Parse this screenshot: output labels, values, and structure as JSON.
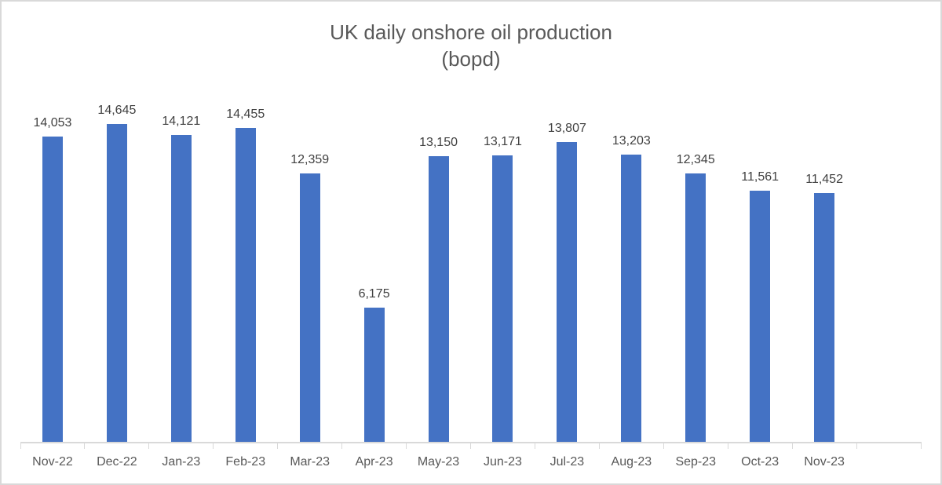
{
  "chart": {
    "title_line1": "UK daily onshore oil production",
    "title_line2": "(bopd)"
  },
  "chart_data": {
    "type": "bar",
    "title": "UK daily onshore oil production (bopd)",
    "categories": [
      "Nov-22",
      "Dec-22",
      "Jan-23",
      "Feb-23",
      "Mar-23",
      "Apr-23",
      "May-23",
      "Jun-23",
      "Jul-23",
      "Aug-23",
      "Sep-23",
      "Oct-23",
      "Nov-23"
    ],
    "values": [
      14053,
      14645,
      14121,
      14455,
      12359,
      6175,
      13150,
      13171,
      13807,
      13203,
      12345,
      11561,
      11452
    ],
    "data_labels": [
      "14,053",
      "14,645",
      "14,121",
      "14,455",
      "12,359",
      "6,175",
      "13,150",
      "13,171",
      "13,807",
      "13,203",
      "12,345",
      "11,561",
      "11,452"
    ],
    "xlabel": "",
    "ylabel": "",
    "ylim": [
      0,
      16000
    ],
    "y_axis_visible": false,
    "gridlines": false,
    "legend": false,
    "data_labels_shown": true,
    "empty_trailing_intervals": 1,
    "bar_color": "#4472C4",
    "data_label_color": "#404040",
    "axis_text_color": "#595959",
    "axis_line_color": "#D9D9D9",
    "title_color": "#595959",
    "frame_border_color": "#D9D9D9"
  }
}
